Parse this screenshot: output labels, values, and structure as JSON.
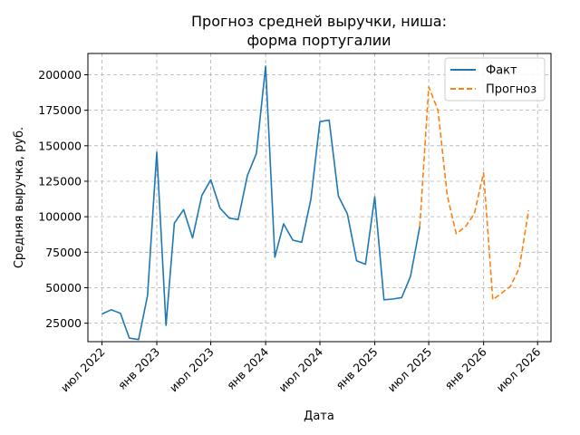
{
  "chart_data": {
    "type": "line",
    "title": [
      "Прогноз средней выручки, ниша:",
      "форма португалии"
    ],
    "xlabel": "Дата",
    "ylabel": "Средняя выручка, руб.",
    "ylim": [
      12000,
      215000
    ],
    "xlim": [
      "2022-05-15",
      "2026-08-15"
    ],
    "grid": true,
    "legend_position": "top-right",
    "y_ticks": [
      25000,
      50000,
      75000,
      100000,
      125000,
      150000,
      175000,
      200000
    ],
    "x_ticks": [
      {
        "date": "2022-07-01",
        "label": "июл 2022"
      },
      {
        "date": "2023-01-01",
        "label": "янв 2023"
      },
      {
        "date": "2023-07-01",
        "label": "июл 2023"
      },
      {
        "date": "2024-01-01",
        "label": "янв 2024"
      },
      {
        "date": "2024-07-01",
        "label": "июл 2024"
      },
      {
        "date": "2025-01-01",
        "label": "янв 2025"
      },
      {
        "date": "2025-07-01",
        "label": "июл 2025"
      },
      {
        "date": "2026-01-01",
        "label": "янв 2026"
      },
      {
        "date": "2026-07-01",
        "label": "июл 2026"
      }
    ],
    "series": [
      {
        "name": "Факт",
        "color": "#1f77b4",
        "style": "solid",
        "x": [
          "2022-07-01",
          "2022-08-01",
          "2022-09-01",
          "2022-10-01",
          "2022-11-01",
          "2022-12-01",
          "2023-01-01",
          "2023-02-01",
          "2023-03-01",
          "2023-04-01",
          "2023-05-01",
          "2023-06-01",
          "2023-07-01",
          "2023-08-01",
          "2023-09-01",
          "2023-10-01",
          "2023-11-01",
          "2023-12-01",
          "2024-01-01",
          "2024-02-01",
          "2024-03-01",
          "2024-04-01",
          "2024-05-01",
          "2024-06-01",
          "2024-07-01",
          "2024-08-01",
          "2024-09-01",
          "2024-10-01",
          "2024-11-01",
          "2024-12-01",
          "2025-01-01",
          "2025-02-01",
          "2025-03-01",
          "2025-04-01",
          "2025-05-01",
          "2025-06-01"
        ],
        "values": [
          31500,
          34500,
          32000,
          14500,
          13500,
          44500,
          145500,
          23500,
          95500,
          105000,
          85000,
          115000,
          126000,
          106000,
          99000,
          98000,
          129000,
          144500,
          206000,
          71500,
          95000,
          83500,
          82000,
          112500,
          167000,
          168000,
          114500,
          102000,
          69000,
          66500,
          114000,
          41500,
          42000,
          43000,
          58000,
          93000
        ]
      },
      {
        "name": "Прогноз",
        "color": "#ff7f0e",
        "style": "dashed",
        "x": [
          "2025-06-01",
          "2025-07-01",
          "2025-08-01",
          "2025-09-01",
          "2025-10-01",
          "2025-11-01",
          "2025-12-01",
          "2026-01-01",
          "2026-02-01",
          "2026-03-01",
          "2026-04-01",
          "2026-05-01",
          "2026-06-01"
        ],
        "values": [
          93000,
          191500,
          175000,
          115000,
          88000,
          93000,
          102000,
          131000,
          41500,
          46000,
          51000,
          64000,
          104500
        ]
      }
    ]
  }
}
